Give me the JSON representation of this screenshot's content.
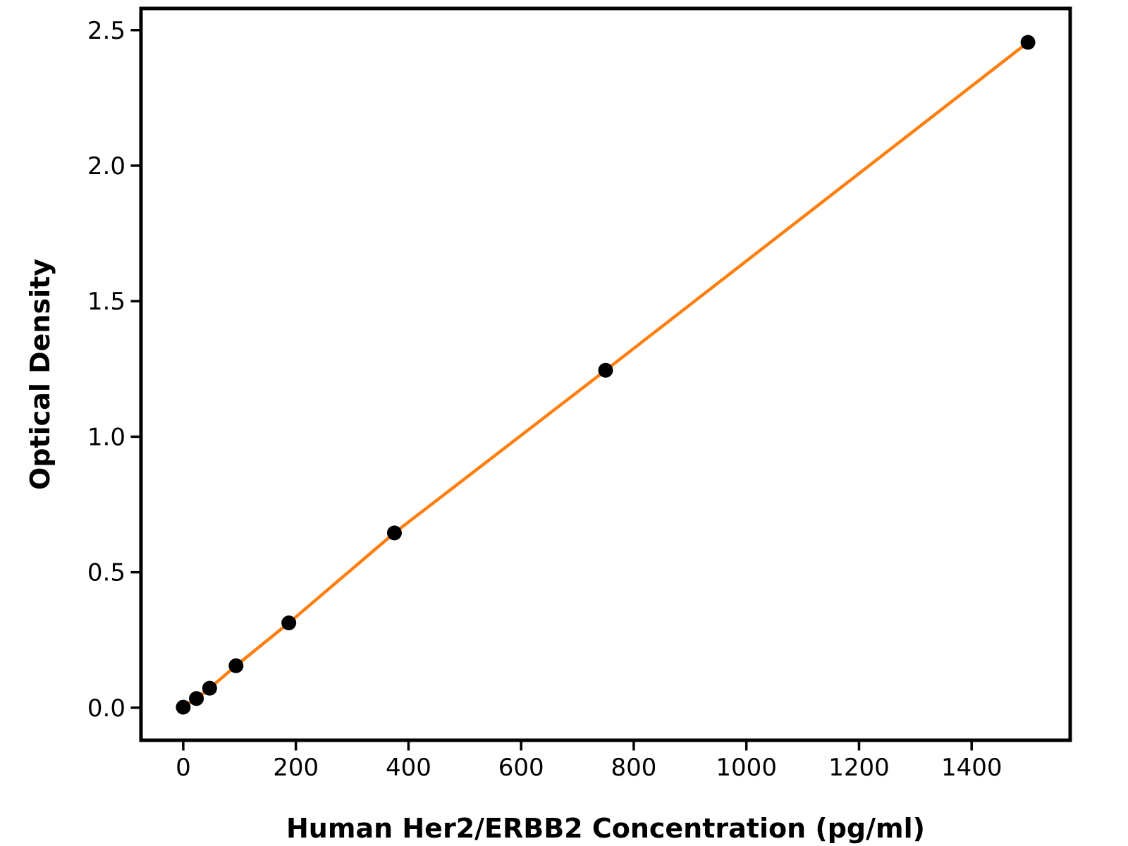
{
  "figure": {
    "background": "#ffffff"
  },
  "chart_data": {
    "type": "line",
    "title": "",
    "xlabel": "Human Her2/ERBB2 Concentration (pg/ml)",
    "ylabel": "Optical Density",
    "x": [
      0,
      23.4,
      46.9,
      93.8,
      187.5,
      375,
      750,
      1500
    ],
    "y": [
      0.002,
      0.034,
      0.072,
      0.155,
      0.313,
      0.645,
      1.245,
      2.455
    ],
    "x_ticks": [
      0,
      200,
      400,
      600,
      800,
      1000,
      1200,
      1400
    ],
    "y_ticks": [
      0,
      0.5,
      1,
      1.5,
      2,
      2.5
    ],
    "y_tick_decimals": 1,
    "xlim": [
      -75,
      1575
    ],
    "ylim": [
      -0.12,
      2.58
    ],
    "grid": false,
    "legend": false,
    "line_color": "#FF7F0E",
    "marker_color": "#000000",
    "axis_color": "#000000"
  }
}
